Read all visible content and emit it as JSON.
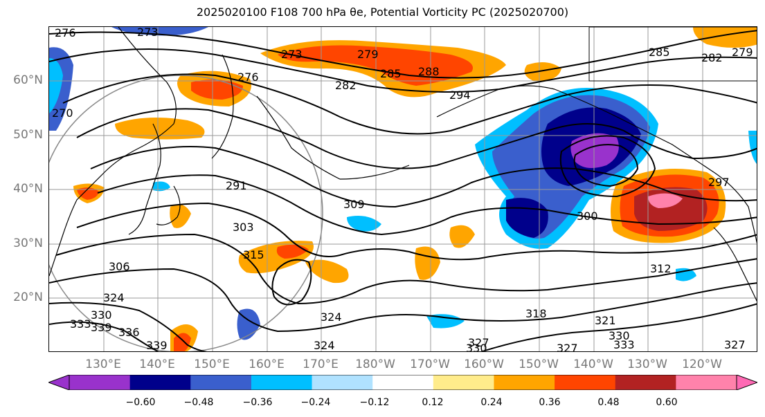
{
  "title": "2025020100 F108 700 hPa θe, Potential Vorticity PC (2025020700)",
  "lat_labels": [
    "60°N",
    "50°N",
    "40°N",
    "30°N",
    "20°N"
  ],
  "lon_labels": [
    "130°E",
    "140°E",
    "150°E",
    "160°E",
    "170°E",
    "180°W",
    "170°W",
    "160°W",
    "150°W",
    "140°W",
    "130°W",
    "120°W"
  ],
  "contour_labels": [
    "276",
    "273",
    "273",
    "279",
    "282",
    "285",
    "288",
    "294",
    "285",
    "282",
    "279",
    "276",
    "270",
    "291",
    "309",
    "303",
    "300",
    "297",
    "315",
    "306",
    "324",
    "330",
    "333",
    "339",
    "336",
    "327",
    "324",
    "318",
    "312",
    "321",
    "330",
    "333",
    "327",
    "324",
    "327",
    "330",
    "339"
  ],
  "colorbar": {
    "ticks": [
      "−0.60",
      "−0.48",
      "−0.36",
      "−0.24",
      "−0.12",
      "0.12",
      "0.24",
      "0.36",
      "0.48",
      "0.60"
    ],
    "colors": [
      "#9932cc",
      "#00008b",
      "#3a5fcd",
      "#00bfff",
      "#b0e2ff",
      "#ffffff",
      "#ffec8b",
      "#ffa500",
      "#ff4500",
      "#b22222",
      "#ff82ab",
      "#ff69b4"
    ]
  }
}
